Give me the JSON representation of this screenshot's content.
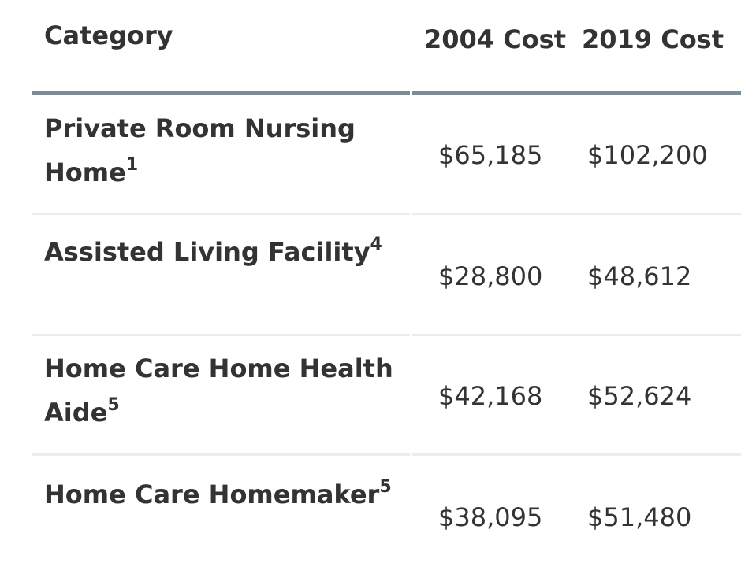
{
  "header": {
    "category": "Category",
    "cost_2004": "2004 Cost",
    "cost_2019": "2019 Cost"
  },
  "rows": [
    {
      "category": "Private Room Nursing Home",
      "footnote": "1",
      "cost_2004": "$65,185",
      "cost_2019": "$102,200"
    },
    {
      "category": "Assisted Living Facility",
      "footnote": "4",
      "cost_2004": "$28,800",
      "cost_2019": "$48,612"
    },
    {
      "category": "Home Care Home Health Aide",
      "footnote": "5",
      "cost_2004": "$42,168",
      "cost_2019": "$52,624"
    },
    {
      "category": "Home Care Homemaker",
      "footnote": "5",
      "cost_2004": "$38,095",
      "cost_2019": "$51,480"
    }
  ],
  "colors": {
    "text": "#333333",
    "header_rule": "#7d8b95",
    "row_divider": "#e6eeef",
    "background": "#ffffff"
  }
}
